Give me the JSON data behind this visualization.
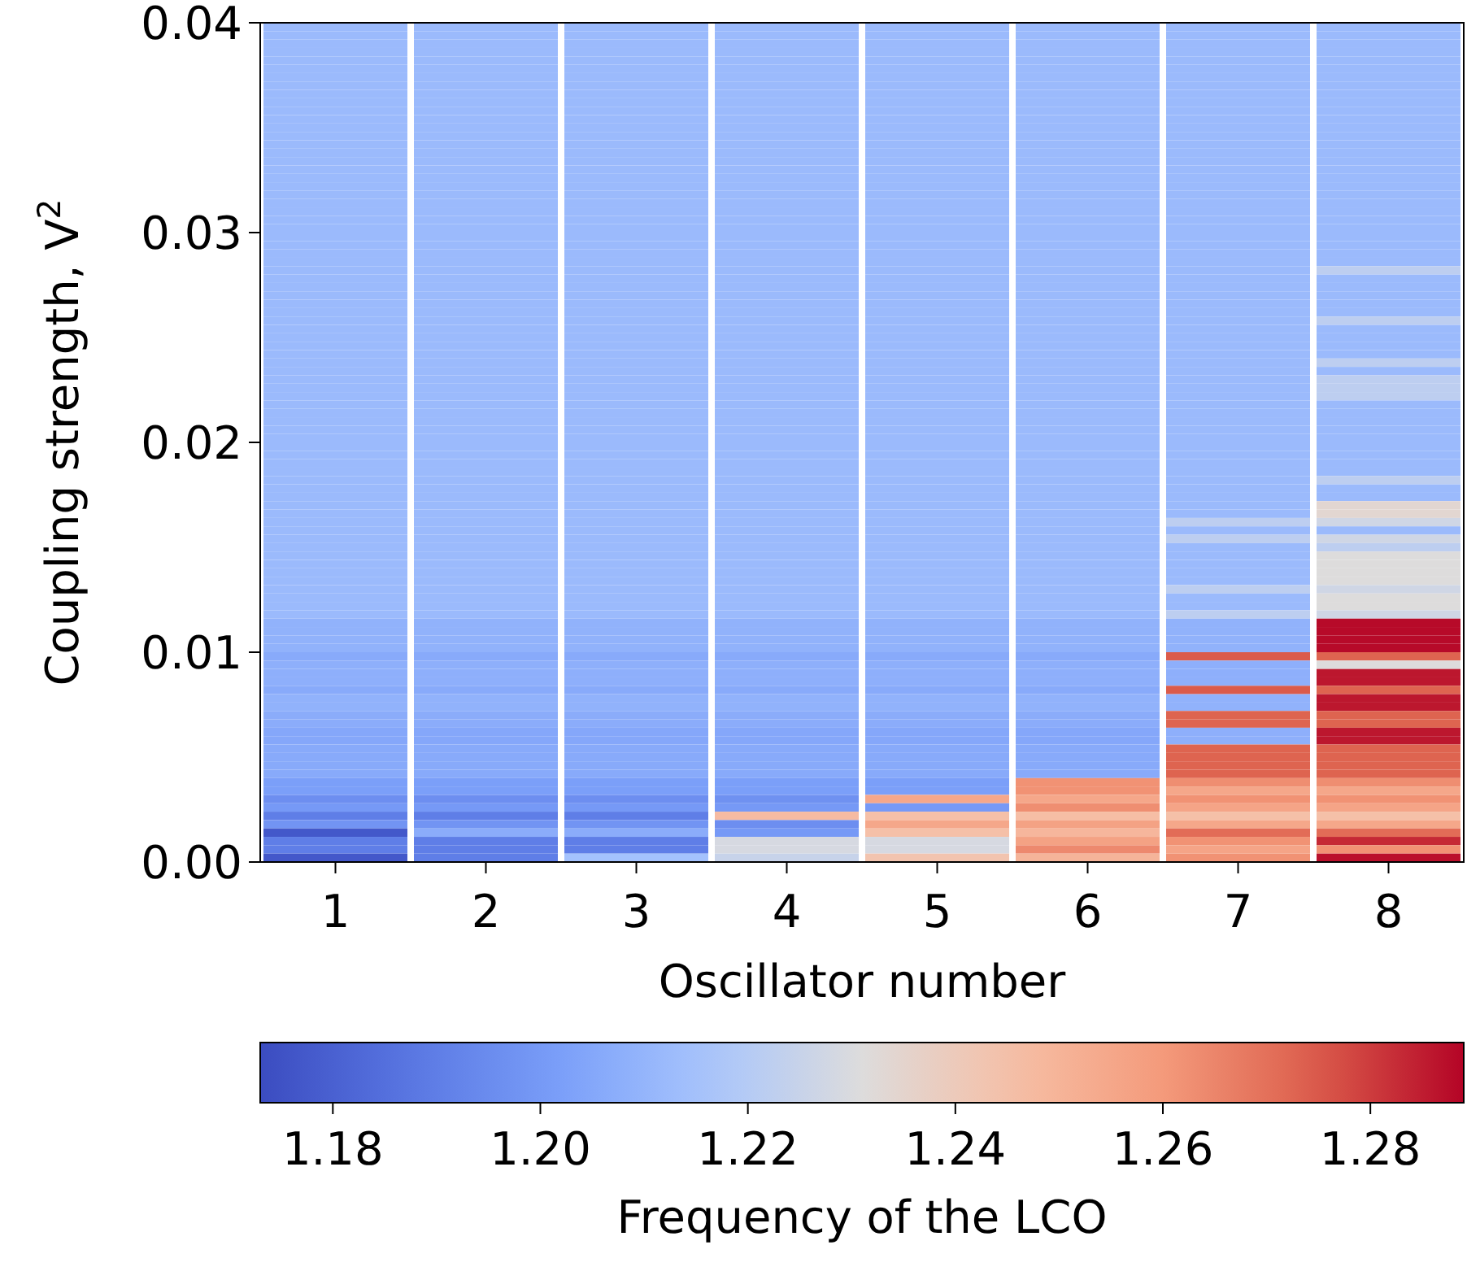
{
  "chart_data": {
    "type": "heatmap",
    "xlabel": "Oscillator number",
    "ylabel": "Coupling strength, $^{}$V$^{2}$",
    "clabel": "Frequency of the LCO",
    "categories": [
      "1",
      "2",
      "3",
      "4",
      "5",
      "6",
      "7",
      "8"
    ],
    "ylim": [
      0,
      0.04
    ],
    "yticks": [
      {
        "value": 0,
        "label": "0.00"
      },
      {
        "value": 0.01,
        "label": "0.01"
      },
      {
        "value": 0.02,
        "label": "0.02"
      },
      {
        "value": 0.03,
        "label": "0.03"
      },
      {
        "value": 0.04,
        "label": "0.04"
      }
    ],
    "clim": [
      1.173,
      1.289
    ],
    "cticks": [
      {
        "value": 1.18,
        "label": "1.18"
      },
      {
        "value": 1.2,
        "label": "1.20"
      },
      {
        "value": 1.22,
        "label": "1.22"
      },
      {
        "value": 1.24,
        "label": "1.24"
      },
      {
        "value": 1.26,
        "label": "1.26"
      },
      {
        "value": 1.28,
        "label": "1.28"
      }
    ],
    "cells": [
      [
        1.212,
        1.212,
        1.212,
        1.212,
        1.212,
        1.212,
        1.212,
        1.212
      ],
      [
        1.212,
        1.212,
        1.212,
        1.212,
        1.212,
        1.212,
        1.212,
        1.212
      ],
      [
        1.212,
        1.212,
        1.212,
        1.212,
        1.212,
        1.212,
        1.212,
        1.212
      ],
      [
        1.212,
        1.212,
        1.212,
        1.212,
        1.212,
        1.212,
        1.212,
        1.212
      ],
      [
        1.212,
        1.212,
        1.212,
        1.212,
        1.212,
        1.212,
        1.212,
        1.212
      ],
      [
        1.212,
        1.212,
        1.212,
        1.212,
        1.212,
        1.212,
        1.212,
        1.212
      ],
      [
        1.212,
        1.212,
        1.212,
        1.212,
        1.212,
        1.212,
        1.212,
        1.212
      ],
      [
        1.212,
        1.212,
        1.212,
        1.212,
        1.212,
        1.212,
        1.212,
        1.212
      ],
      [
        1.212,
        1.212,
        1.212,
        1.212,
        1.212,
        1.212,
        1.212,
        1.212
      ],
      [
        1.212,
        1.212,
        1.212,
        1.212,
        1.212,
        1.212,
        1.212,
        1.212
      ],
      [
        1.212,
        1.212,
        1.212,
        1.212,
        1.212,
        1.212,
        1.212,
        1.212
      ],
      [
        1.212,
        1.212,
        1.212,
        1.212,
        1.212,
        1.212,
        1.212,
        1.212
      ],
      [
        1.212,
        1.212,
        1.212,
        1.212,
        1.212,
        1.212,
        1.212,
        1.212
      ],
      [
        1.212,
        1.212,
        1.212,
        1.212,
        1.212,
        1.212,
        1.212,
        1.212
      ],
      [
        1.212,
        1.212,
        1.212,
        1.212,
        1.212,
        1.212,
        1.212,
        1.212
      ],
      [
        1.212,
        1.212,
        1.212,
        1.212,
        1.212,
        1.212,
        1.212,
        1.212
      ],
      [
        1.212,
        1.212,
        1.212,
        1.212,
        1.212,
        1.212,
        1.212,
        1.212
      ],
      [
        1.212,
        1.212,
        1.212,
        1.212,
        1.212,
        1.212,
        1.212,
        1.212
      ],
      [
        1.212,
        1.212,
        1.212,
        1.212,
        1.212,
        1.212,
        1.212,
        1.212
      ],
      [
        1.212,
        1.212,
        1.212,
        1.212,
        1.212,
        1.212,
        1.212,
        1.212
      ],
      [
        1.212,
        1.212,
        1.212,
        1.212,
        1.212,
        1.212,
        1.212,
        1.212
      ],
      [
        1.212,
        1.212,
        1.212,
        1.212,
        1.212,
        1.212,
        1.212,
        1.212
      ],
      [
        1.212,
        1.212,
        1.212,
        1.212,
        1.212,
        1.212,
        1.212,
        1.212
      ],
      [
        1.212,
        1.212,
        1.212,
        1.212,
        1.212,
        1.212,
        1.212,
        1.212
      ],
      [
        1.212,
        1.212,
        1.212,
        1.212,
        1.212,
        1.212,
        1.212,
        1.212
      ],
      [
        1.212,
        1.212,
        1.212,
        1.212,
        1.212,
        1.212,
        1.212,
        1.212
      ],
      [
        1.212,
        1.212,
        1.212,
        1.212,
        1.212,
        1.212,
        1.212,
        1.212
      ],
      [
        1.212,
        1.212,
        1.212,
        1.212,
        1.212,
        1.212,
        1.212,
        1.212
      ],
      [
        1.212,
        1.212,
        1.212,
        1.212,
        1.212,
        1.212,
        1.212,
        1.212
      ],
      [
        1.212,
        1.212,
        1.212,
        1.212,
        1.212,
        1.212,
        1.212,
        1.222
      ],
      [
        1.212,
        1.212,
        1.212,
        1.212,
        1.212,
        1.212,
        1.212,
        1.212
      ],
      [
        1.212,
        1.212,
        1.212,
        1.212,
        1.212,
        1.212,
        1.212,
        1.212
      ],
      [
        1.212,
        1.212,
        1.212,
        1.212,
        1.212,
        1.212,
        1.212,
        1.212
      ],
      [
        1.212,
        1.212,
        1.212,
        1.212,
        1.212,
        1.212,
        1.212,
        1.212
      ],
      [
        1.212,
        1.212,
        1.212,
        1.212,
        1.212,
        1.212,
        1.212,
        1.212
      ],
      [
        1.212,
        1.212,
        1.212,
        1.212,
        1.212,
        1.212,
        1.212,
        1.222
      ],
      [
        1.212,
        1.212,
        1.212,
        1.212,
        1.212,
        1.212,
        1.212,
        1.212
      ],
      [
        1.212,
        1.212,
        1.212,
        1.212,
        1.212,
        1.212,
        1.212,
        1.212
      ],
      [
        1.212,
        1.212,
        1.212,
        1.212,
        1.212,
        1.212,
        1.212,
        1.212
      ],
      [
        1.212,
        1.212,
        1.212,
        1.212,
        1.212,
        1.212,
        1.212,
        1.212
      ],
      [
        1.212,
        1.212,
        1.212,
        1.212,
        1.212,
        1.212,
        1.212,
        1.222
      ],
      [
        1.212,
        1.212,
        1.212,
        1.212,
        1.212,
        1.212,
        1.212,
        1.212
      ],
      [
        1.212,
        1.212,
        1.212,
        1.212,
        1.212,
        1.212,
        1.212,
        1.222
      ],
      [
        1.212,
        1.212,
        1.212,
        1.212,
        1.212,
        1.212,
        1.212,
        1.222
      ],
      [
        1.212,
        1.212,
        1.212,
        1.212,
        1.212,
        1.212,
        1.212,
        1.222
      ],
      [
        1.212,
        1.212,
        1.212,
        1.212,
        1.212,
        1.212,
        1.212,
        1.212
      ],
      [
        1.212,
        1.212,
        1.212,
        1.212,
        1.212,
        1.212,
        1.212,
        1.212
      ],
      [
        1.212,
        1.212,
        1.212,
        1.212,
        1.212,
        1.212,
        1.212,
        1.212
      ],
      [
        1.212,
        1.212,
        1.212,
        1.212,
        1.212,
        1.212,
        1.212,
        1.212
      ],
      [
        1.212,
        1.212,
        1.212,
        1.212,
        1.212,
        1.212,
        1.212,
        1.212
      ],
      [
        1.212,
        1.212,
        1.212,
        1.212,
        1.212,
        1.212,
        1.212,
        1.212
      ],
      [
        1.212,
        1.212,
        1.212,
        1.212,
        1.212,
        1.212,
        1.212,
        1.212
      ],
      [
        1.212,
        1.212,
        1.212,
        1.212,
        1.212,
        1.212,
        1.212,
        1.212
      ],
      [
        1.212,
        1.212,
        1.212,
        1.212,
        1.212,
        1.212,
        1.212,
        1.212
      ],
      [
        1.212,
        1.212,
        1.212,
        1.212,
        1.212,
        1.212,
        1.212,
        1.222
      ],
      [
        1.212,
        1.212,
        1.212,
        1.212,
        1.212,
        1.212,
        1.212,
        1.212
      ],
      [
        1.212,
        1.212,
        1.212,
        1.212,
        1.212,
        1.212,
        1.212,
        1.212
      ],
      [
        1.212,
        1.212,
        1.212,
        1.212,
        1.212,
        1.212,
        1.212,
        1.234
      ],
      [
        1.212,
        1.212,
        1.212,
        1.212,
        1.212,
        1.212,
        1.212,
        1.234
      ],
      [
        1.212,
        1.212,
        1.212,
        1.212,
        1.212,
        1.212,
        1.222,
        1.227
      ],
      [
        1.212,
        1.212,
        1.212,
        1.212,
        1.212,
        1.212,
        1.212,
        1.212
      ],
      [
        1.212,
        1.212,
        1.212,
        1.212,
        1.212,
        1.212,
        1.222,
        1.227
      ],
      [
        1.212,
        1.212,
        1.212,
        1.212,
        1.212,
        1.212,
        1.212,
        1.222
      ],
      [
        1.212,
        1.212,
        1.212,
        1.212,
        1.212,
        1.212,
        1.212,
        1.231
      ],
      [
        1.212,
        1.212,
        1.212,
        1.212,
        1.212,
        1.212,
        1.212,
        1.231
      ],
      [
        1.212,
        1.212,
        1.212,
        1.212,
        1.212,
        1.212,
        1.212,
        1.231
      ],
      [
        1.212,
        1.212,
        1.212,
        1.212,
        1.212,
        1.212,
        1.212,
        1.231
      ],
      [
        1.212,
        1.212,
        1.212,
        1.212,
        1.212,
        1.212,
        1.222,
        1.227
      ],
      [
        1.212,
        1.212,
        1.212,
        1.212,
        1.212,
        1.212,
        1.212,
        1.231
      ],
      [
        1.212,
        1.212,
        1.212,
        1.212,
        1.212,
        1.212,
        1.212,
        1.231
      ],
      [
        1.212,
        1.212,
        1.212,
        1.212,
        1.212,
        1.212,
        1.222,
        1.227
      ],
      [
        1.209,
        1.209,
        1.209,
        1.209,
        1.209,
        1.209,
        1.209,
        1.288
      ],
      [
        1.209,
        1.209,
        1.209,
        1.209,
        1.209,
        1.209,
        1.209,
        1.288
      ],
      [
        1.209,
        1.209,
        1.209,
        1.209,
        1.209,
        1.209,
        1.209,
        1.288
      ],
      [
        1.209,
        1.209,
        1.209,
        1.209,
        1.209,
        1.209,
        1.209,
        1.288
      ],
      [
        1.206,
        1.206,
        1.206,
        1.206,
        1.206,
        1.206,
        1.275,
        1.273
      ],
      [
        1.208,
        1.208,
        1.208,
        1.208,
        1.208,
        1.208,
        1.208,
        1.231
      ],
      [
        1.208,
        1.208,
        1.208,
        1.208,
        1.208,
        1.208,
        1.208,
        1.286
      ],
      [
        1.208,
        1.208,
        1.208,
        1.208,
        1.208,
        1.208,
        1.208,
        1.286
      ],
      [
        1.206,
        1.206,
        1.206,
        1.206,
        1.206,
        1.206,
        1.275,
        1.273
      ],
      [
        1.209,
        1.209,
        1.209,
        1.209,
        1.209,
        1.209,
        1.209,
        1.286
      ],
      [
        1.209,
        1.209,
        1.209,
        1.209,
        1.209,
        1.209,
        1.209,
        1.286
      ],
      [
        1.207,
        1.207,
        1.207,
        1.207,
        1.207,
        1.207,
        1.273,
        1.273
      ],
      [
        1.207,
        1.207,
        1.207,
        1.207,
        1.207,
        1.207,
        1.273,
        1.273
      ],
      [
        1.205,
        1.205,
        1.205,
        1.205,
        1.205,
        1.205,
        1.208,
        1.286
      ],
      [
        1.205,
        1.205,
        1.205,
        1.205,
        1.205,
        1.205,
        1.208,
        1.286
      ],
      [
        1.206,
        1.206,
        1.206,
        1.206,
        1.206,
        1.206,
        1.273,
        1.273
      ],
      [
        1.206,
        1.206,
        1.206,
        1.206,
        1.206,
        1.206,
        1.273,
        1.273
      ],
      [
        1.206,
        1.206,
        1.206,
        1.206,
        1.206,
        1.206,
        1.273,
        1.273
      ],
      [
        1.206,
        1.206,
        1.206,
        1.206,
        1.206,
        1.206,
        1.273,
        1.273
      ],
      [
        1.202,
        1.202,
        1.202,
        1.202,
        1.202,
        1.262,
        1.263,
        1.263
      ],
      [
        1.202,
        1.202,
        1.202,
        1.202,
        1.202,
        1.262,
        1.255,
        1.255
      ],
      [
        1.196,
        1.196,
        1.196,
        1.197,
        1.255,
        1.255,
        1.262,
        1.262
      ],
      [
        1.2,
        1.2,
        1.2,
        1.2,
        1.2,
        1.263,
        1.256,
        1.256
      ],
      [
        1.19,
        1.19,
        1.19,
        1.247,
        1.245,
        1.246,
        1.245,
        1.245
      ],
      [
        1.198,
        1.198,
        1.198,
        1.196,
        1.255,
        1.257,
        1.255,
        1.255
      ],
      [
        1.177,
        1.207,
        1.207,
        1.2,
        1.245,
        1.249,
        1.271,
        1.271
      ],
      [
        1.19,
        1.19,
        1.19,
        1.229,
        1.229,
        1.257,
        1.262,
        1.283
      ],
      [
        1.19,
        1.19,
        1.19,
        1.229,
        1.229,
        1.264,
        1.256,
        1.262
      ],
      [
        1.177,
        1.19,
        1.215,
        1.225,
        1.243,
        1.25,
        1.262,
        1.287
      ]
    ]
  }
}
